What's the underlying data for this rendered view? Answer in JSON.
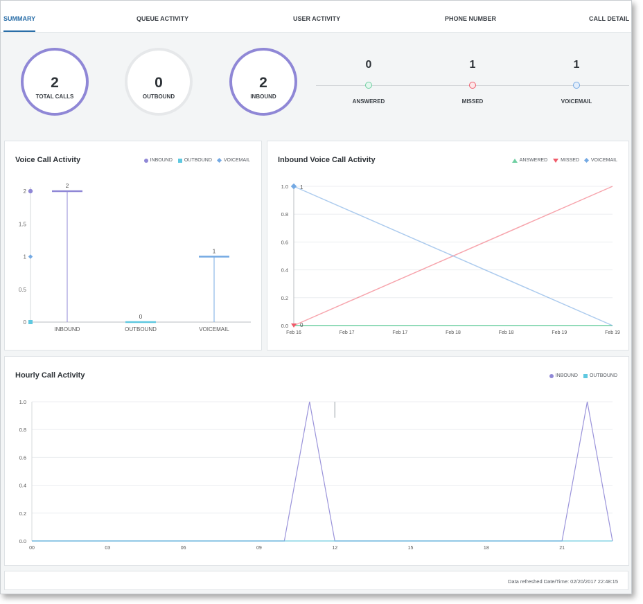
{
  "tabs": [
    {
      "label": "SUMMARY",
      "active": true
    },
    {
      "label": "QUEUE ACTIVITY",
      "active": false
    },
    {
      "label": "USER ACTIVITY",
      "active": false
    },
    {
      "label": "PHONE NUMBER",
      "active": false
    },
    {
      "label": "CALL DETAIL",
      "active": false
    }
  ],
  "summary": {
    "total_calls": {
      "value": "2",
      "label": "TOTAL CALLS"
    },
    "outbound": {
      "value": "0",
      "label": "OUTBOUND"
    },
    "inbound": {
      "value": "2",
      "label": "INBOUND"
    },
    "answered": {
      "value": "0",
      "label": "ANSWERED"
    },
    "missed": {
      "value": "1",
      "label": "MISSED"
    },
    "voicemail": {
      "value": "1",
      "label": "VOICEMAIL"
    }
  },
  "colors": {
    "inbound": "#8f87d6",
    "outbound": "#5ec8e0",
    "voicemail": "#74a9e3",
    "answered": "#6fcfa2",
    "missed": "#f05b6a",
    "circle_gray": "#e6e8ea"
  },
  "voice_activity": {
    "title": "Voice Call Activity",
    "legend": [
      "INBOUND",
      "OUTBOUND",
      "VOICEMAIL"
    ]
  },
  "inbound_activity": {
    "title": "Inbound Voice Call Activity",
    "legend": [
      "ANSWERED",
      "MISSED",
      "VOICEMAIL"
    ]
  },
  "hourly_activity": {
    "title": "Hourly Call Activity",
    "legend": [
      "INBOUND",
      "OUTBOUND"
    ]
  },
  "chart_data": [
    {
      "type": "bar",
      "title": "Voice Call Activity",
      "categories": [
        "INBOUND",
        "OUTBOUND",
        "VOICEMAIL"
      ],
      "values": [
        2,
        0,
        1
      ],
      "data_labels": [
        "2",
        "0",
        "1"
      ],
      "y_ticks": [
        "0",
        "0.5",
        "1",
        "1.5",
        "2"
      ],
      "ylim": [
        0,
        2
      ],
      "legend": [
        "INBOUND",
        "OUTBOUND",
        "VOICEMAIL"
      ],
      "legend_position": "top-right"
    },
    {
      "type": "line",
      "title": "Inbound Voice Call Activity",
      "x_ticks": [
        "Feb 16",
        "Feb 17",
        "Feb 17",
        "Feb 18",
        "Feb 18",
        "Feb 19",
        "Feb 19"
      ],
      "y_ticks": [
        "0.0",
        "0.2",
        "0.4",
        "0.6",
        "0.8",
        "1.0"
      ],
      "ylim": [
        0,
        1
      ],
      "series": [
        {
          "name": "ANSWERED",
          "values": [
            0,
            0
          ]
        },
        {
          "name": "MISSED",
          "values": [
            0,
            1
          ]
        },
        {
          "name": "VOICEMAIL",
          "values": [
            1,
            0
          ]
        }
      ],
      "point_labels": [
        "1",
        "0"
      ],
      "legend_position": "top-right"
    },
    {
      "type": "line",
      "title": "Hourly Call Activity",
      "x_ticks": [
        "00",
        "03",
        "06",
        "09",
        "12",
        "15",
        "18",
        "21"
      ],
      "y_ticks": [
        "0.0",
        "0.2",
        "0.4",
        "0.6",
        "0.8",
        "1.0"
      ],
      "ylim": [
        0,
        1
      ],
      "x": [
        0,
        10,
        11,
        12,
        21,
        22,
        23
      ],
      "series": [
        {
          "name": "INBOUND",
          "values": [
            0,
            0,
            1,
            0,
            0,
            1,
            0
          ]
        },
        {
          "name": "OUTBOUND",
          "values": [
            0,
            0,
            0,
            0,
            0,
            0,
            0
          ]
        }
      ],
      "legend_position": "top-right"
    }
  ],
  "footer": {
    "refreshed": "Data refreshed Date/Time: 02/20/2017 22:48:15"
  }
}
